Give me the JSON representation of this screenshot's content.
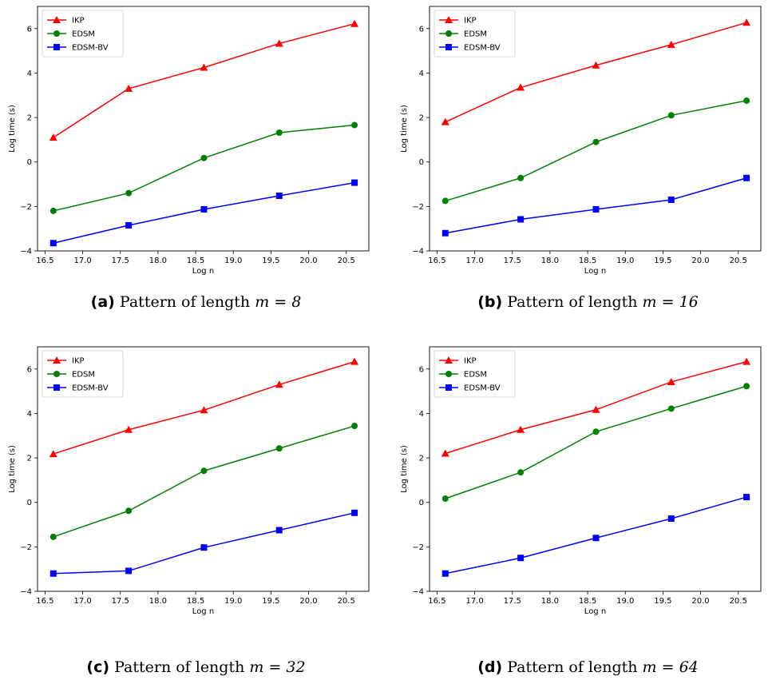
{
  "chart_data": [
    {
      "type": "line",
      "caption": {
        "tag": "(a)",
        "text": "Pattern of length",
        "math": "m = 8"
      },
      "xlabel": "Log n",
      "ylabel": "Log time (s)",
      "xlim": [
        16.4,
        20.8
      ],
      "ylim": [
        -4,
        7
      ],
      "xticks": [
        "16.5",
        "17.0",
        "17.5",
        "18.0",
        "18.5",
        "19.0",
        "19.5",
        "20.0",
        "20.5"
      ],
      "yticks": [
        "−4",
        "−2",
        "0",
        "2",
        "4",
        "6"
      ],
      "legend": "top-left",
      "grid": false,
      "x": [
        16.61,
        17.61,
        18.61,
        19.61,
        20.61
      ],
      "series": [
        {
          "name": "IKP",
          "color": "#ff0000",
          "marker": "triangle",
          "values": [
            1.1,
            3.3,
            4.25,
            5.33,
            6.22
          ]
        },
        {
          "name": "EDSM",
          "color": "#008000",
          "marker": "circle",
          "values": [
            -2.2,
            -1.4,
            0.18,
            1.32,
            1.66
          ]
        },
        {
          "name": "EDSM-BV",
          "color": "#0000ff",
          "marker": "square",
          "values": [
            -3.65,
            -2.85,
            -2.13,
            -1.52,
            -0.93
          ]
        }
      ]
    },
    {
      "type": "line",
      "caption": {
        "tag": "(b)",
        "text": "Pattern of length",
        "math": "m = 16"
      },
      "xlabel": "Log n",
      "ylabel": "Log time (s)",
      "xlim": [
        16.4,
        20.8
      ],
      "ylim": [
        -4,
        7
      ],
      "xticks": [
        "16.5",
        "17.0",
        "17.5",
        "18.0",
        "18.5",
        "19.0",
        "19.5",
        "20.0",
        "20.5"
      ],
      "yticks": [
        "−4",
        "−2",
        "0",
        "2",
        "4",
        "6"
      ],
      "legend": "top-left",
      "grid": false,
      "x": [
        16.61,
        17.61,
        18.61,
        19.61,
        20.61
      ],
      "series": [
        {
          "name": "IKP",
          "color": "#ff0000",
          "marker": "triangle",
          "values": [
            1.8,
            3.35,
            4.35,
            5.28,
            6.27
          ]
        },
        {
          "name": "EDSM",
          "color": "#008000",
          "marker": "circle",
          "values": [
            -1.75,
            -0.72,
            0.9,
            2.1,
            2.76
          ]
        },
        {
          "name": "EDSM-BV",
          "color": "#0000ff",
          "marker": "square",
          "values": [
            -3.2,
            -2.58,
            -2.13,
            -1.7,
            -0.72
          ]
        }
      ]
    },
    {
      "type": "line",
      "caption": {
        "tag": "(c)",
        "text": "Pattern of length",
        "math": "m = 32"
      },
      "xlabel": "Log n",
      "ylabel": "Log time (s)",
      "xlim": [
        16.4,
        20.8
      ],
      "ylim": [
        -4,
        7
      ],
      "xticks": [
        "16.5",
        "17.0",
        "17.5",
        "18.0",
        "18.5",
        "19.0",
        "19.5",
        "20.0",
        "20.5"
      ],
      "yticks": [
        "−4",
        "−2",
        "0",
        "2",
        "4",
        "6"
      ],
      "legend": "top-left",
      "grid": false,
      "x": [
        16.61,
        17.61,
        18.61,
        19.61,
        20.61
      ],
      "series": [
        {
          "name": "IKP",
          "color": "#ff0000",
          "marker": "triangle",
          "values": [
            2.18,
            3.27,
            4.15,
            5.3,
            6.33
          ]
        },
        {
          "name": "EDSM",
          "color": "#008000",
          "marker": "circle",
          "values": [
            -1.55,
            -0.38,
            1.42,
            2.43,
            3.44
          ]
        },
        {
          "name": "EDSM-BV",
          "color": "#0000ff",
          "marker": "square",
          "values": [
            -3.2,
            -3.08,
            -2.03,
            -1.25,
            -0.47
          ]
        }
      ]
    },
    {
      "type": "line",
      "caption": {
        "tag": "(d)",
        "text": "Pattern of length",
        "math": "m = 64"
      },
      "xlabel": "Log n",
      "ylabel": "Log time (s)",
      "xlim": [
        16.4,
        20.8
      ],
      "ylim": [
        -4,
        7
      ],
      "xticks": [
        "16.5",
        "17.0",
        "17.5",
        "18.0",
        "18.5",
        "19.0",
        "19.5",
        "20.0",
        "20.5"
      ],
      "yticks": [
        "−4",
        "−2",
        "0",
        "2",
        "4",
        "6"
      ],
      "legend": "top-left",
      "grid": false,
      "x": [
        16.61,
        17.61,
        18.61,
        19.61,
        20.61
      ],
      "series": [
        {
          "name": "IKP",
          "color": "#ff0000",
          "marker": "triangle",
          "values": [
            2.2,
            3.27,
            4.17,
            5.42,
            6.33
          ]
        },
        {
          "name": "EDSM",
          "color": "#008000",
          "marker": "circle",
          "values": [
            0.17,
            1.35,
            3.18,
            4.22,
            5.23
          ]
        },
        {
          "name": "EDSM-BV",
          "color": "#0000ff",
          "marker": "square",
          "values": [
            -3.2,
            -2.5,
            -1.6,
            -0.73,
            0.24
          ]
        }
      ]
    }
  ]
}
